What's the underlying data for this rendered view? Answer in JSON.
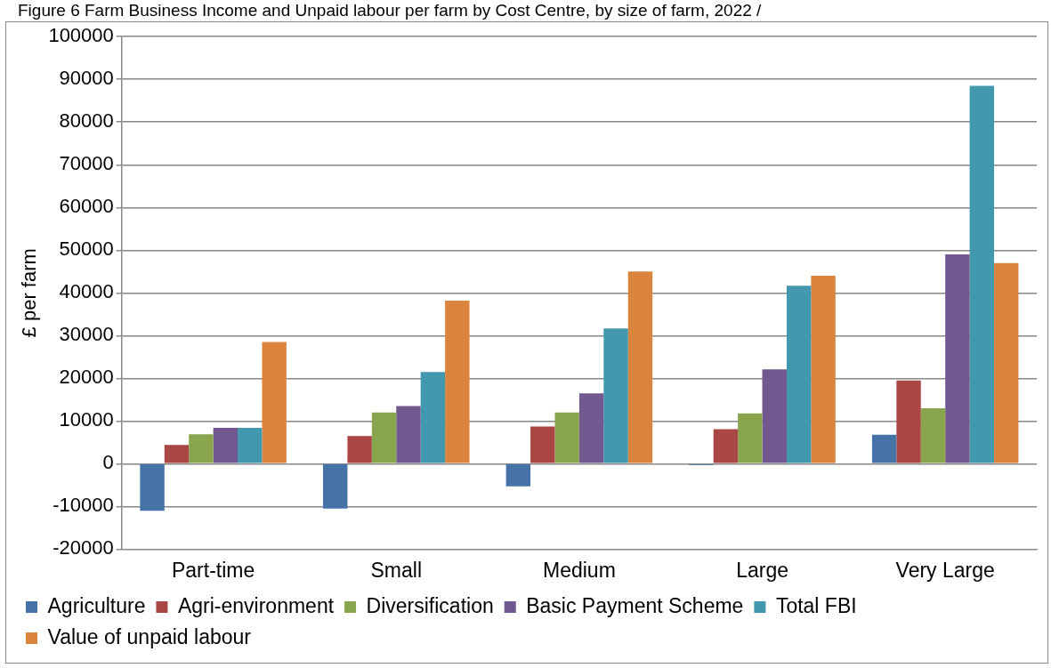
{
  "chart_data": {
    "type": "bar",
    "title": "Figure 6 Farm Business Income and Unpaid labour per farm by Cost Centre, by size of farm, 2022 /",
    "ylabel": "£ per farm",
    "categories": [
      "Part-time",
      "Small",
      "Medium",
      "Large",
      "Very Large"
    ],
    "series": [
      {
        "name": "Agriculture",
        "color": "#4572a7",
        "values": [
          -11000,
          -10500,
          -5300,
          -300,
          6800
        ]
      },
      {
        "name": "Agri-environment",
        "color": "#aa4643",
        "values": [
          4400,
          6500,
          8700,
          8100,
          19500
        ]
      },
      {
        "name": "Diversification",
        "color": "#89a54e",
        "values": [
          6900,
          12000,
          12000,
          11800,
          13000
        ]
      },
      {
        "name": "Basic Payment Scheme",
        "color": "#71588f",
        "values": [
          8400,
          13500,
          16500,
          22100,
          49000
        ]
      },
      {
        "name": "Total FBI",
        "color": "#4198af",
        "values": [
          8400,
          21500,
          31700,
          41700,
          88500
        ]
      },
      {
        "name": "Value of unpaid labour",
        "color": "#db843d",
        "values": [
          28500,
          38200,
          45000,
          44000,
          47000
        ]
      }
    ],
    "ylim": [
      -20000,
      100000
    ],
    "yticks": [
      -20000,
      -10000,
      0,
      10000,
      20000,
      30000,
      40000,
      50000,
      60000,
      70000,
      80000,
      90000,
      100000
    ],
    "grid": "y",
    "legend": "bottom"
  }
}
